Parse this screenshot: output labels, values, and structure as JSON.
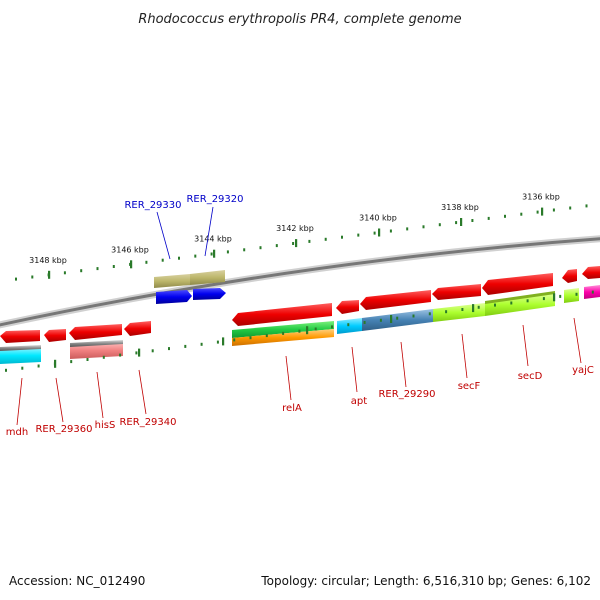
{
  "title": "Rhodococcus erythropolis PR4, complete genome",
  "footer": {
    "accession": "Accession: NC_012490",
    "topology": "Topology: circular; Length: 6,516,310 bp; Genes: 6,102"
  },
  "colors": {
    "forward_label": "#0000c8",
    "reverse_label": "#c00000",
    "tick": "#2a7a2a",
    "backbone": "#777777"
  },
  "ticks": [
    "3148 kbp",
    "3146 kbp",
    "3144 kbp",
    "3142 kbp",
    "3140 kbp",
    "3138 kbp",
    "3136 kbp"
  ],
  "forward_genes": [
    {
      "label": "RER_29330",
      "color": "#0000e6"
    },
    {
      "label": "RER_29320",
      "color": "#0000e6"
    }
  ],
  "reverse_genes": [
    {
      "label": "mdh",
      "color": "#00e0ff"
    },
    {
      "label": "RER_29360",
      "color": "#ff0000"
    },
    {
      "label": "hisS",
      "color": "#f08080"
    },
    {
      "label": "RER_29340",
      "color": "#ff0000"
    },
    {
      "label": "relA",
      "color": "#22cc44"
    },
    {
      "label": "apt",
      "color": "#00ccff"
    },
    {
      "label": "RER_29290",
      "color": "#4682b4"
    },
    {
      "label": "secF",
      "color": "#adff2f"
    },
    {
      "label": "secD",
      "color": "#adff2f"
    },
    {
      "label": "yajC",
      "color": "#ff00aa"
    }
  ]
}
